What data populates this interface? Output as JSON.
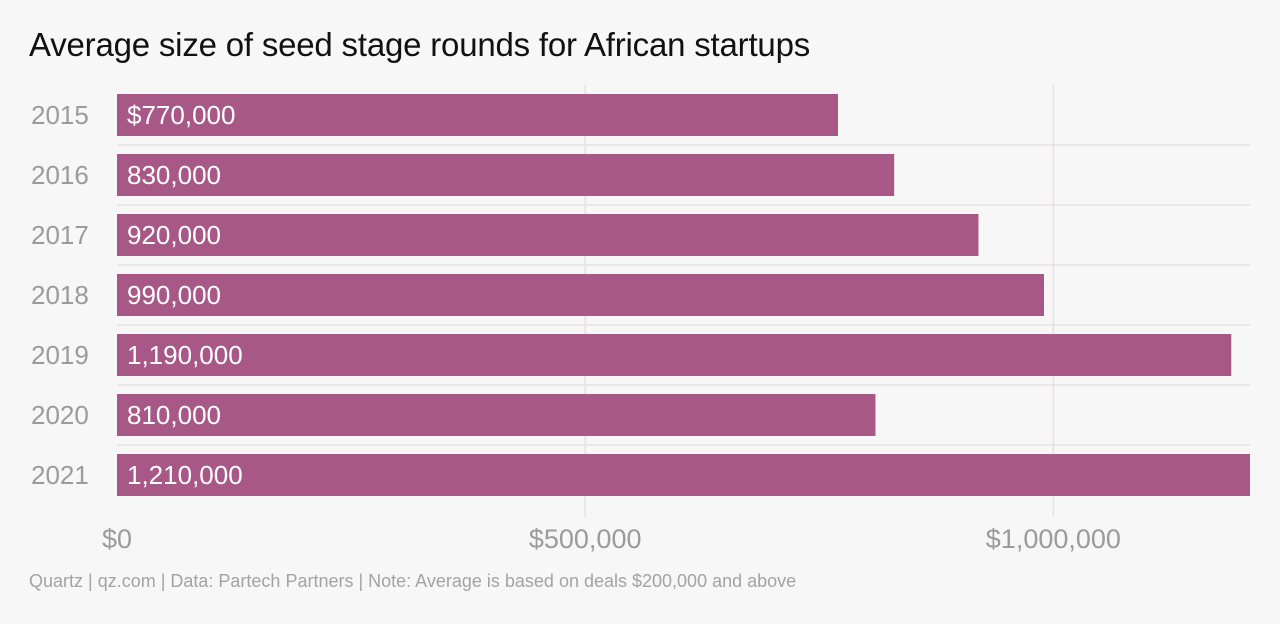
{
  "title": "Average size of seed stage rounds for African startups",
  "footer": "Quartz | qz.com | Data: Partech Partners | Note: Average is based on deals $200,000 and above",
  "colors": {
    "bar": "#a85887",
    "background": "#f8f7f7",
    "grid": "#e3e1e1",
    "tick_text": "#9b9b9b",
    "bar_label": "#ffffff"
  },
  "chart_data": {
    "type": "bar",
    "orientation": "horizontal",
    "title": "Average size of seed stage rounds for African startups",
    "categories": [
      "2015",
      "2016",
      "2017",
      "2018",
      "2019",
      "2020",
      "2021"
    ],
    "values": [
      770000,
      830000,
      920000,
      990000,
      1190000,
      810000,
      1210000
    ],
    "data_labels": [
      "$770,000",
      "830,000",
      "920,000",
      "990,000",
      "1,190,000",
      "810,000",
      "1,210,000"
    ],
    "x_ticks": [
      0,
      500000,
      1000000
    ],
    "x_tick_labels": [
      "$0",
      "$500,000",
      "$1,000,000"
    ],
    "xlim": [
      0,
      1210000
    ],
    "grid": true
  }
}
